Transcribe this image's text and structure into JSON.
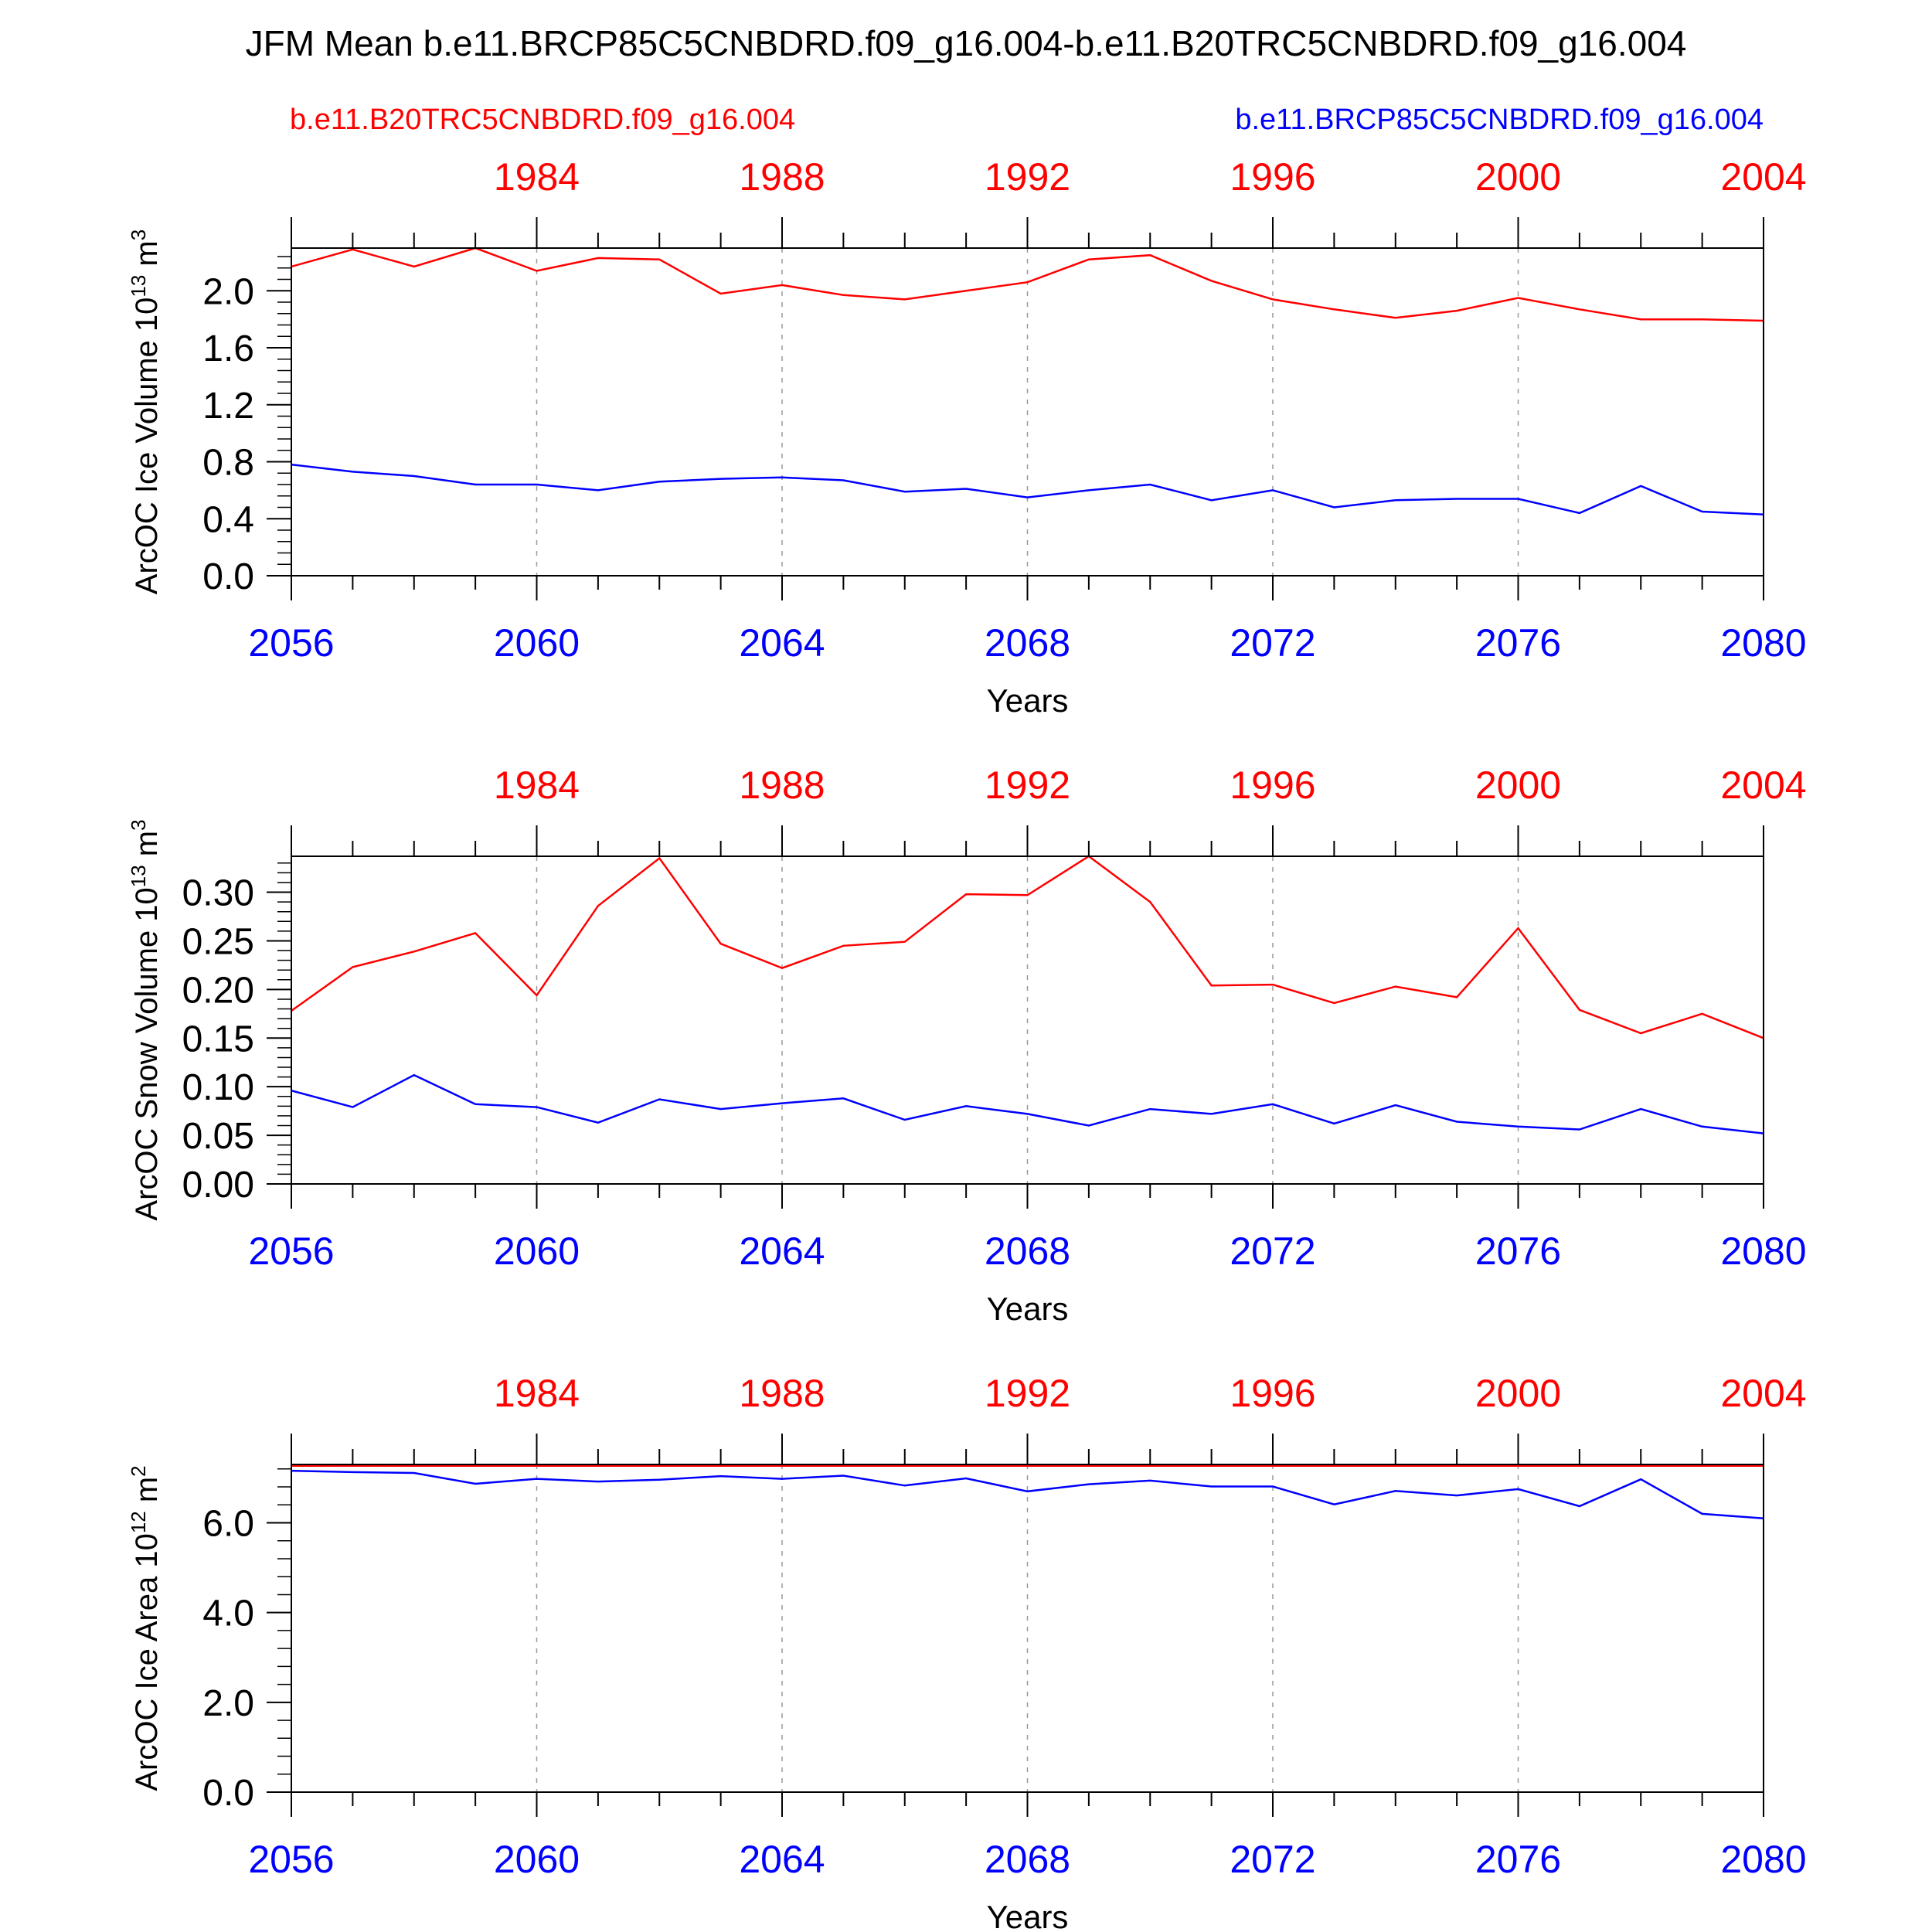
{
  "title": "JFM Mean b.e11.BRCP85C5CNBDRD.f09_g16.004-b.e11.B20TRC5CNBDRD.f09_g16.004",
  "legend": {
    "left": "b.e11.B20TRC5CNBDRD.f09_g16.004",
    "right": "b.e11.BRCP85C5CNBDRD.f09_g16.004"
  },
  "colors": {
    "red": "#ff0000",
    "blue": "#0000ff",
    "axis": "#000000",
    "grid": "#999999"
  },
  "chart_data": [
    {
      "type": "line",
      "ylabel": "ArcOC Ice Volume 10",
      "ylabel_exp": "13",
      "ylabel_unit": "m",
      "ylabel_unit_exp": "3",
      "xlabel": "Years",
      "xlim": [
        2056,
        2080
      ],
      "ylim": [
        0,
        2.3
      ],
      "yticks": [
        "0.0",
        "0.4",
        "0.8",
        "1.2",
        "1.6",
        "2.0"
      ],
      "yminor_step": 0.08,
      "bottom_ticks": [
        "2056",
        "2060",
        "2064",
        "2068",
        "2072",
        "2076",
        "2080"
      ],
      "top_ticks": [
        "1984",
        "1988",
        "1992",
        "1996",
        "2000",
        "2004"
      ],
      "grid": true,
      "x": [
        2056,
        2057,
        2058,
        2059,
        2060,
        2061,
        2062,
        2063,
        2064,
        2065,
        2066,
        2067,
        2068,
        2069,
        2070,
        2071,
        2072,
        2073,
        2074,
        2075,
        2076,
        2077,
        2078,
        2079,
        2080
      ],
      "series": [
        {
          "color": "red",
          "values": [
            2.17,
            2.29,
            2.17,
            2.3,
            2.14,
            2.23,
            2.22,
            1.98,
            2.04,
            1.97,
            1.94,
            2.0,
            2.06,
            2.22,
            2.25,
            2.07,
            1.94,
            1.87,
            1.81,
            1.86,
            1.95,
            1.87,
            1.8,
            1.8,
            1.79
          ]
        },
        {
          "color": "blue",
          "values": [
            0.78,
            0.73,
            0.7,
            0.64,
            0.64,
            0.6,
            0.66,
            0.68,
            0.69,
            0.67,
            0.59,
            0.61,
            0.55,
            0.6,
            0.64,
            0.53,
            0.6,
            0.48,
            0.53,
            0.54,
            0.54,
            0.44,
            0.63,
            0.45,
            0.43
          ]
        }
      ]
    },
    {
      "type": "line",
      "ylabel": "ArcOC Snow Volume 10",
      "ylabel_exp": "13",
      "ylabel_unit": "m",
      "ylabel_unit_exp": "3",
      "xlabel": "Years",
      "xlim": [
        2056,
        2080
      ],
      "ylim": [
        0,
        0.337
      ],
      "yticks": [
        "0.00",
        "0.05",
        "0.10",
        "0.15",
        "0.20",
        "0.25",
        "0.30"
      ],
      "yminor_step": 0.01,
      "bottom_ticks": [
        "2056",
        "2060",
        "2064",
        "2068",
        "2072",
        "2076",
        "2080"
      ],
      "top_ticks": [
        "1984",
        "1988",
        "1992",
        "1996",
        "2000",
        "2004"
      ],
      "grid": true,
      "x": [
        2056,
        2057,
        2058,
        2059,
        2060,
        2061,
        2062,
        2063,
        2064,
        2065,
        2066,
        2067,
        2068,
        2069,
        2070,
        2071,
        2072,
        2073,
        2074,
        2075,
        2076,
        2077,
        2078,
        2079,
        2080
      ],
      "series": [
        {
          "color": "red",
          "values": [
            0.178,
            0.223,
            0.239,
            0.258,
            0.194,
            0.286,
            0.335,
            0.247,
            0.222,
            0.245,
            0.249,
            0.298,
            0.297,
            0.337,
            0.29,
            0.204,
            0.205,
            0.186,
            0.203,
            0.192,
            0.263,
            0.179,
            0.155,
            0.175,
            0.15
          ]
        },
        {
          "color": "blue",
          "values": [
            0.096,
            0.079,
            0.112,
            0.082,
            0.079,
            0.063,
            0.087,
            0.077,
            0.083,
            0.088,
            0.066,
            0.08,
            0.072,
            0.06,
            0.077,
            0.072,
            0.082,
            0.062,
            0.081,
            0.064,
            0.059,
            0.056,
            0.077,
            0.059,
            0.052
          ]
        }
      ]
    },
    {
      "type": "line",
      "ylabel": "ArcOC Ice Area 10",
      "ylabel_exp": "12",
      "ylabel_unit": "m",
      "ylabel_unit_exp": "2",
      "xlabel": "Years",
      "xlim": [
        2056,
        2080
      ],
      "ylim": [
        0,
        7.3
      ],
      "yticks": [
        "0.0",
        "2.0",
        "4.0",
        "6.0"
      ],
      "yminor_step": 0.4,
      "bottom_ticks": [
        "2056",
        "2060",
        "2064",
        "2068",
        "2072",
        "2076",
        "2080"
      ],
      "top_ticks": [
        "1984",
        "1988",
        "1992",
        "1996",
        "2000",
        "2004"
      ],
      "grid": true,
      "x": [
        2056,
        2057,
        2058,
        2059,
        2060,
        2061,
        2062,
        2063,
        2064,
        2065,
        2066,
        2067,
        2068,
        2069,
        2070,
        2071,
        2072,
        2073,
        2074,
        2075,
        2076,
        2077,
        2078,
        2079,
        2080
      ],
      "series": [
        {
          "color": "red",
          "values": [
            7.27,
            7.27,
            7.27,
            7.27,
            7.27,
            7.27,
            7.27,
            7.27,
            7.27,
            7.27,
            7.27,
            7.27,
            7.27,
            7.27,
            7.27,
            7.27,
            7.27,
            7.27,
            7.27,
            7.27,
            7.27,
            7.27,
            7.27,
            7.27,
            7.27
          ]
        },
        {
          "color": "blue",
          "values": [
            7.16,
            7.13,
            7.11,
            6.87,
            6.98,
            6.92,
            6.96,
            7.04,
            6.98,
            7.05,
            6.83,
            6.99,
            6.7,
            6.86,
            6.94,
            6.81,
            6.81,
            6.41,
            6.71,
            6.61,
            6.75,
            6.37,
            6.97,
            6.2,
            6.1
          ]
        }
      ]
    }
  ]
}
